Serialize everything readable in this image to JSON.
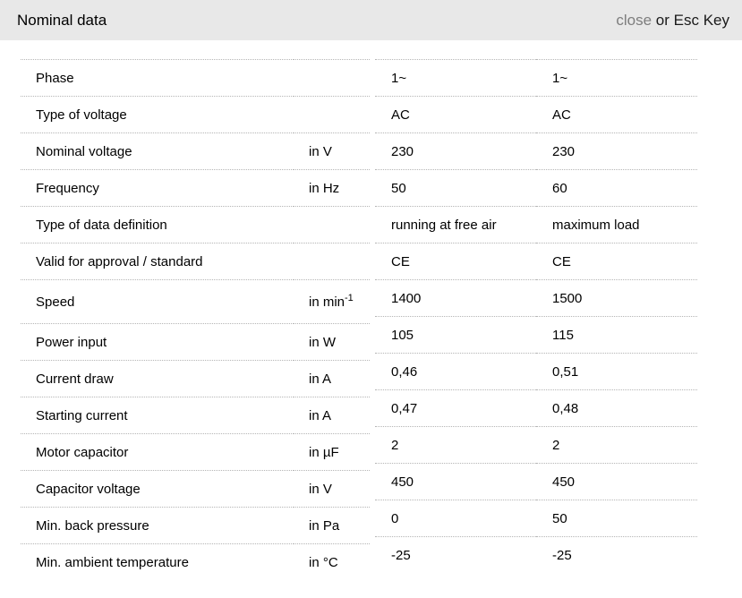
{
  "header": {
    "title": "Nominal data",
    "close_label": "close",
    "close_hint": "or Esc Key"
  },
  "table": {
    "rows": [
      {
        "label": "Phase",
        "unit": "",
        "values": [
          "1~",
          "1~"
        ]
      },
      {
        "label": "Type of voltage",
        "unit": "",
        "values": [
          "AC",
          "AC"
        ]
      },
      {
        "label": "Nominal voltage",
        "unit": "in V",
        "values": [
          "230",
          "230"
        ]
      },
      {
        "label": "Frequency",
        "unit": "in Hz",
        "values": [
          "50",
          "60"
        ]
      },
      {
        "label": "Type of data definition",
        "unit": "",
        "values": [
          "running at free air",
          "maximum load"
        ]
      },
      {
        "label": "Valid for approval / standard",
        "unit": "",
        "values": [
          "CE",
          "CE"
        ]
      },
      {
        "label": "Speed",
        "unit": "in min",
        "unit_sup": "-1",
        "values": [
          "1400",
          "1500"
        ]
      },
      {
        "label": "Power input",
        "unit": "in W",
        "values": [
          "105",
          "115"
        ]
      },
      {
        "label": "Current draw",
        "unit": "in A",
        "values": [
          "0,46",
          "0,51"
        ]
      },
      {
        "label": "Starting current",
        "unit": "in A",
        "values": [
          "0,47",
          "0,48"
        ]
      },
      {
        "label": "Motor capacitor",
        "unit": "in µF",
        "values": [
          "2",
          "2"
        ]
      },
      {
        "label": "Capacitor voltage",
        "unit": "in V",
        "values": [
          "450",
          "450"
        ]
      },
      {
        "label": "Min. back pressure",
        "unit": "in Pa",
        "values": [
          "0",
          "50"
        ]
      },
      {
        "label": "Min. ambient temperature",
        "unit": "in °C",
        "values": [
          "-25",
          "-25"
        ]
      }
    ]
  },
  "colors": {
    "header_bg": "#e8e8e8",
    "close_gray": "#7d7d7d",
    "divider": "#b5b5b5",
    "text": "#000000"
  }
}
